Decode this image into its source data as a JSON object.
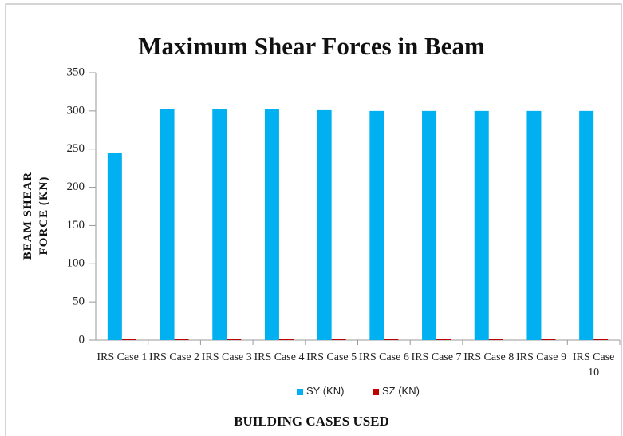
{
  "chart_data": {
    "type": "bar",
    "title": "Maximum Shear Forces in Beam",
    "x_label": "BUILDING CASES USED",
    "y_label": "BEAM SHEAR FORCE (KN)",
    "categories": [
      "IRS Case 1",
      "IRS Case 2",
      "IRS Case 3",
      "IRS Case 4",
      "IRS Case 5",
      "IRS Case 6",
      "IRS Case 7",
      "IRS Case 8",
      "IRS Case 9",
      "IRS Case 10"
    ],
    "series": [
      {
        "name": "SY (KN)",
        "color": "#00b0f0",
        "values": [
          245,
          303,
          302,
          302,
          301,
          300,
          300,
          300,
          300,
          300
        ]
      },
      {
        "name": "SZ (KN)",
        "color": "#c00000",
        "values": [
          2,
          2,
          2,
          2,
          2,
          2,
          2,
          2,
          2,
          2
        ]
      }
    ],
    "ylim": [
      0,
      350
    ],
    "yticks": [
      0,
      50,
      100,
      150,
      200,
      250,
      300,
      350
    ],
    "grid": false,
    "legend": "bottom"
  }
}
